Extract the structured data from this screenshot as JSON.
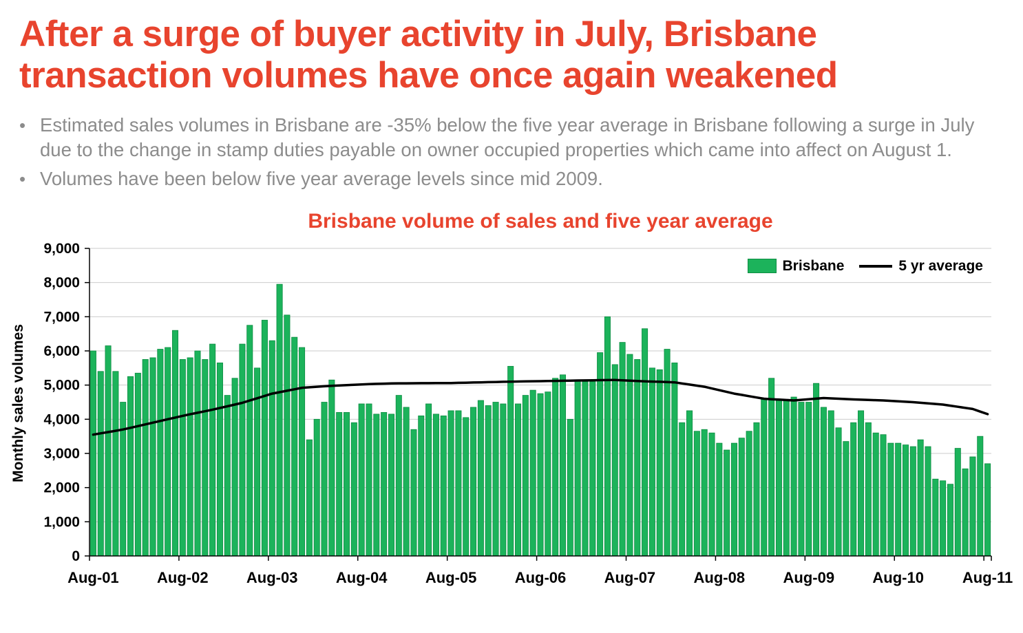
{
  "page": {
    "headline": "After a surge of buyer activity in July, Brisbane transaction volumes have once again weakened",
    "bullet_marker": "•",
    "bullets": [
      "Estimated sales volumes in Brisbane are -35% below the five year average in Brisbane following a surge in July due to the change in stamp duties payable on owner occupied properties which came into affect on August 1.",
      "Volumes have been below five year average levels since mid 2009."
    ]
  },
  "colors": {
    "headline_red": "#E8442E",
    "bullet_gray": "#8C8C8C",
    "bar_green": "#1CB35B",
    "bar_green_border": "#0D8C42",
    "line_black": "#000000",
    "gridline": "#CBCBCB",
    "axis": "#000000"
  },
  "chart_data": {
    "type": "bar",
    "title": "Brisbane volume of sales and five year average",
    "ylabel": "Monthly sales volumes",
    "xlabel": "",
    "x_unit": "month",
    "x_range": [
      "Aug-01",
      "Aug-11"
    ],
    "n_points": 121,
    "ylim": [
      0,
      9000
    ],
    "ytick_step": 1000,
    "y_tick_labels": [
      "0",
      "1,000",
      "2,000",
      "3,000",
      "4,000",
      "5,000",
      "6,000",
      "7,000",
      "8,000",
      "9,000"
    ],
    "x_tick_labels": [
      "Aug-01",
      "Aug-02",
      "Aug-03",
      "Aug-04",
      "Aug-05",
      "Aug-06",
      "Aug-07",
      "Aug-08",
      "Aug-09",
      "Aug-10",
      "Aug-11"
    ],
    "grid": "horizontal",
    "legend": [
      "Brisbane",
      "5 yr average"
    ],
    "legend_position": "top-right",
    "series": [
      {
        "name": "Brisbane",
        "type": "bar",
        "values": [
          6000,
          5400,
          6150,
          5400,
          4500,
          5250,
          5350,
          5750,
          5800,
          6050,
          6100,
          6600,
          5750,
          5800,
          6000,
          5750,
          6200,
          5650,
          4700,
          5200,
          6200,
          6750,
          5500,
          6900,
          6300,
          7950,
          7050,
          6400,
          6100,
          3400,
          4000,
          4500,
          5150,
          4200,
          4200,
          3900,
          4450,
          4450,
          4150,
          4200,
          4150,
          4700,
          4350,
          3700,
          4100,
          4450,
          4150,
          4100,
          4250,
          4250,
          4050,
          4350,
          4550,
          4400,
          4500,
          4450,
          5550,
          4450,
          4700,
          4850,
          4750,
          4800,
          5200,
          5300,
          4000,
          5150,
          5100,
          5100,
          5950,
          7000,
          5600,
          6250,
          5900,
          5750,
          6650,
          5500,
          5450,
          6050,
          5650,
          3900,
          4250,
          3650,
          3700,
          3600,
          3300,
          3100,
          3300,
          3450,
          3650,
          3900,
          4600,
          5200,
          4550,
          4550,
          4650,
          4500,
          4500,
          5050,
          4350,
          4250,
          3750,
          3350,
          3900,
          4250,
          3900,
          3600,
          3550,
          3300,
          3300,
          3250,
          3200,
          3400,
          3200,
          2250,
          2200,
          2100,
          3150,
          2550,
          2900,
          3500,
          2700
        ]
      },
      {
        "name": "5 yr average",
        "type": "line",
        "note": "anchor points as [month_index_from_Aug-01, value]; intermediate months linearly interpolated",
        "anchor_points": [
          [
            0,
            3550
          ],
          [
            4,
            3700
          ],
          [
            8,
            3900
          ],
          [
            12,
            4100
          ],
          [
            16,
            4280
          ],
          [
            20,
            4480
          ],
          [
            24,
            4750
          ],
          [
            28,
            4920
          ],
          [
            32,
            4980
          ],
          [
            36,
            5020
          ],
          [
            40,
            5050
          ],
          [
            48,
            5060
          ],
          [
            56,
            5100
          ],
          [
            64,
            5130
          ],
          [
            70,
            5150
          ],
          [
            74,
            5110
          ],
          [
            78,
            5080
          ],
          [
            82,
            4950
          ],
          [
            86,
            4750
          ],
          [
            90,
            4600
          ],
          [
            94,
            4550
          ],
          [
            98,
            4620
          ],
          [
            102,
            4580
          ],
          [
            106,
            4550
          ],
          [
            110,
            4500
          ],
          [
            114,
            4430
          ],
          [
            118,
            4300
          ],
          [
            120,
            4150
          ]
        ]
      }
    ]
  }
}
